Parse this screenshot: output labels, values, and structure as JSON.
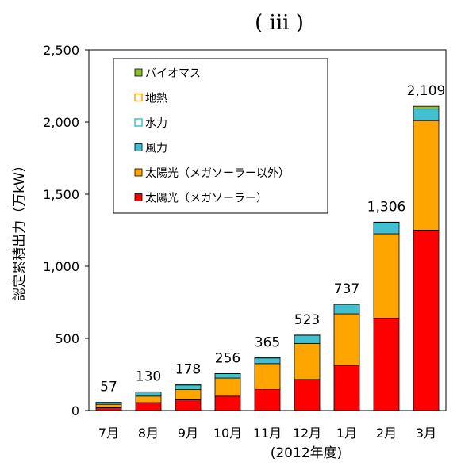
{
  "chart_data": {
    "type": "bar",
    "stacked": true,
    "panel_label": "( iii )",
    "xlabel": "(2012年度)",
    "ylabel": "認定累積出力（万kW）",
    "ylim": [
      0,
      2500
    ],
    "yticks": [
      0,
      500,
      1000,
      1500,
      2000,
      2500
    ],
    "ytick_labels": [
      "0",
      "500",
      "1,000",
      "1,500",
      "2,000",
      "2,500"
    ],
    "categories": [
      "7月",
      "8月",
      "9月",
      "10月",
      "11月",
      "12月",
      "1月",
      "2月",
      "3月"
    ],
    "totals": [
      57,
      130,
      178,
      256,
      365,
      523,
      737,
      1306,
      2109
    ],
    "total_labels": [
      "57",
      "130",
      "178",
      "256",
      "365",
      "523",
      "737",
      "1,306",
      "2,109"
    ],
    "legend_position": "top-left",
    "series": [
      {
        "name": "太陽光(メガソーラー)",
        "color": "#ff0000",
        "values": [
          20,
          55,
          75,
          100,
          145,
          215,
          310,
          640,
          1250
        ]
      },
      {
        "name": "太陽光(メガソーラー以外)",
        "color": "#ffa500",
        "values": [
          23,
          45,
          70,
          125,
          180,
          250,
          360,
          585,
          760
        ]
      },
      {
        "name": "風力",
        "color": "#40c0d0",
        "values": [
          13,
          29,
          32,
          30,
          39,
          57,
          66,
          80,
          80
        ]
      },
      {
        "name": "水力",
        "color": "#40c0d0",
        "values": [
          0,
          0,
          0,
          0,
          0,
          0,
          0,
          0,
          0
        ]
      },
      {
        "name": "地熱",
        "color": "#ffa500",
        "values": [
          0,
          0,
          0,
          0,
          0,
          0,
          0,
          0,
          0
        ]
      },
      {
        "name": "バイオマス",
        "color": "#8dc030",
        "values": [
          1,
          1,
          1,
          1,
          1,
          1,
          1,
          1,
          19
        ]
      }
    ],
    "legend_order": [
      "バイオマス",
      "地熱",
      "水力",
      "風力",
      "太陽光(メガソーラー以外)",
      "太陽光(メガソーラー)"
    ],
    "legend_labels": {
      "バイオマス": "バイオマス",
      "地熱": "地熱",
      "水力": "水力",
      "風力": "風力",
      "太陽光(メガソーラー以外)": "太陽光（メガソーラー以外）",
      "太陽光(メガソーラー)": "太陽光（メガソーラー）"
    },
    "legend_marker_style": {
      "バイオマス": "filled",
      "地熱": "outline",
      "水力": "outline",
      "風力": "filled",
      "太陽光(メガソーラー以外)": "filled",
      "太陽光(メガソーラー)": "filled"
    }
  }
}
